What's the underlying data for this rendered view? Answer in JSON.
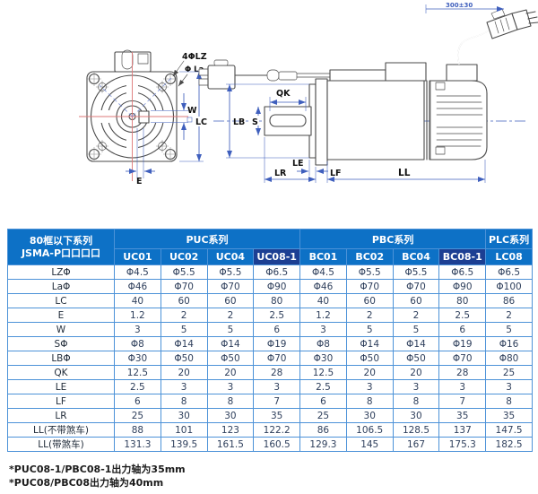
{
  "colors": {
    "header_blue": "#0d71c6",
    "header_dark": "#1c3f93",
    "border_blue": "#4c92d8",
    "cell_text": "#2e3f5c",
    "dim_blue": "#3f5fbd",
    "centerline_red": "#de7878",
    "line_dark": "#4a4a4a"
  },
  "drawing": {
    "front": {
      "hole_label": "4ΦLZ",
      "bolt_circle_label": "Φ La",
      "key_width_label": "W",
      "flange_label": "LC",
      "edge_label": "E"
    },
    "side": {
      "key_length_label": "QK",
      "boss_label": "LB",
      "shaft_label": "S",
      "le_label": "LE",
      "lr_label": "LR",
      "lf_label": "LF",
      "ll_label": "LL",
      "cable_length_label": "300±30"
    }
  },
  "table": {
    "corner": {
      "line1": "80框以下系列",
      "line2": "JSMA-P口口口口"
    },
    "groups": [
      {
        "label": "PUC系列",
        "span": 4
      },
      {
        "label": "PBC系列",
        "span": 4
      },
      {
        "label": "PLC系列",
        "span": 1
      }
    ],
    "columns": [
      {
        "label": "UC01",
        "highlight": false
      },
      {
        "label": "UC02",
        "highlight": false
      },
      {
        "label": "UC04",
        "highlight": false
      },
      {
        "label": "UC08-1",
        "highlight": true
      },
      {
        "label": "BC01",
        "highlight": false
      },
      {
        "label": "BC02",
        "highlight": false
      },
      {
        "label": "BC04",
        "highlight": false
      },
      {
        "label": "BC08-1",
        "highlight": true
      },
      {
        "label": "LC08",
        "highlight": false
      }
    ],
    "rows": [
      {
        "label": "LZΦ",
        "values": [
          "Φ4.5",
          "Φ5.5",
          "Φ5.5",
          "Φ6.5",
          "Φ4.5",
          "Φ5.5",
          "Φ5.5",
          "Φ6.5",
          "Φ6.5"
        ]
      },
      {
        "label": "LaΦ",
        "values": [
          "Φ46",
          "Φ70",
          "Φ70",
          "Φ90",
          "Φ46",
          "Φ70",
          "Φ70",
          "Φ90",
          "Φ100"
        ]
      },
      {
        "label": "LC",
        "values": [
          "40",
          "60",
          "60",
          "80",
          "40",
          "60",
          "60",
          "80",
          "86"
        ]
      },
      {
        "label": "E",
        "values": [
          "1.2",
          "2",
          "2",
          "2.5",
          "1.2",
          "2",
          "2",
          "2.5",
          "2"
        ]
      },
      {
        "label": "W",
        "values": [
          "3",
          "5",
          "5",
          "6",
          "3",
          "5",
          "5",
          "6",
          "5"
        ]
      },
      {
        "label": "SΦ",
        "values": [
          "Φ8",
          "Φ14",
          "Φ14",
          "Φ19",
          "Φ8",
          "Φ14",
          "Φ14",
          "Φ19",
          "Φ16"
        ]
      },
      {
        "label": "LBΦ",
        "values": [
          "Φ30",
          "Φ50",
          "Φ50",
          "Φ70",
          "Φ30",
          "Φ50",
          "Φ50",
          "Φ70",
          "Φ80"
        ]
      },
      {
        "label": "QK",
        "values": [
          "12.5",
          "20",
          "20",
          "28",
          "12.5",
          "20",
          "20",
          "28",
          "25"
        ]
      },
      {
        "label": "LE",
        "values": [
          "2.5",
          "3",
          "3",
          "3",
          "2.5",
          "3",
          "3",
          "3",
          "3"
        ]
      },
      {
        "label": "LF",
        "values": [
          "6",
          "8",
          "8",
          "7",
          "6",
          "8",
          "8",
          "7",
          "8"
        ]
      },
      {
        "label": "LR",
        "values": [
          "25",
          "30",
          "30",
          "35",
          "25",
          "30",
          "30",
          "35",
          "35"
        ]
      },
      {
        "label": "LL(不带煞车)",
        "values": [
          "88",
          "101",
          "123",
          "122.2",
          "86",
          "106.5",
          "128.5",
          "137",
          "147.5"
        ]
      },
      {
        "label": "LL(带煞车)",
        "values": [
          "131.3",
          "139.5",
          "161.5",
          "160.5",
          "129.3",
          "145",
          "167",
          "175.3",
          "182.5"
        ]
      }
    ]
  },
  "notes": [
    "*PUC08-1/PBC08-1出力轴为35mm",
    "*PUC08/PBC08出力轴为40mm"
  ]
}
